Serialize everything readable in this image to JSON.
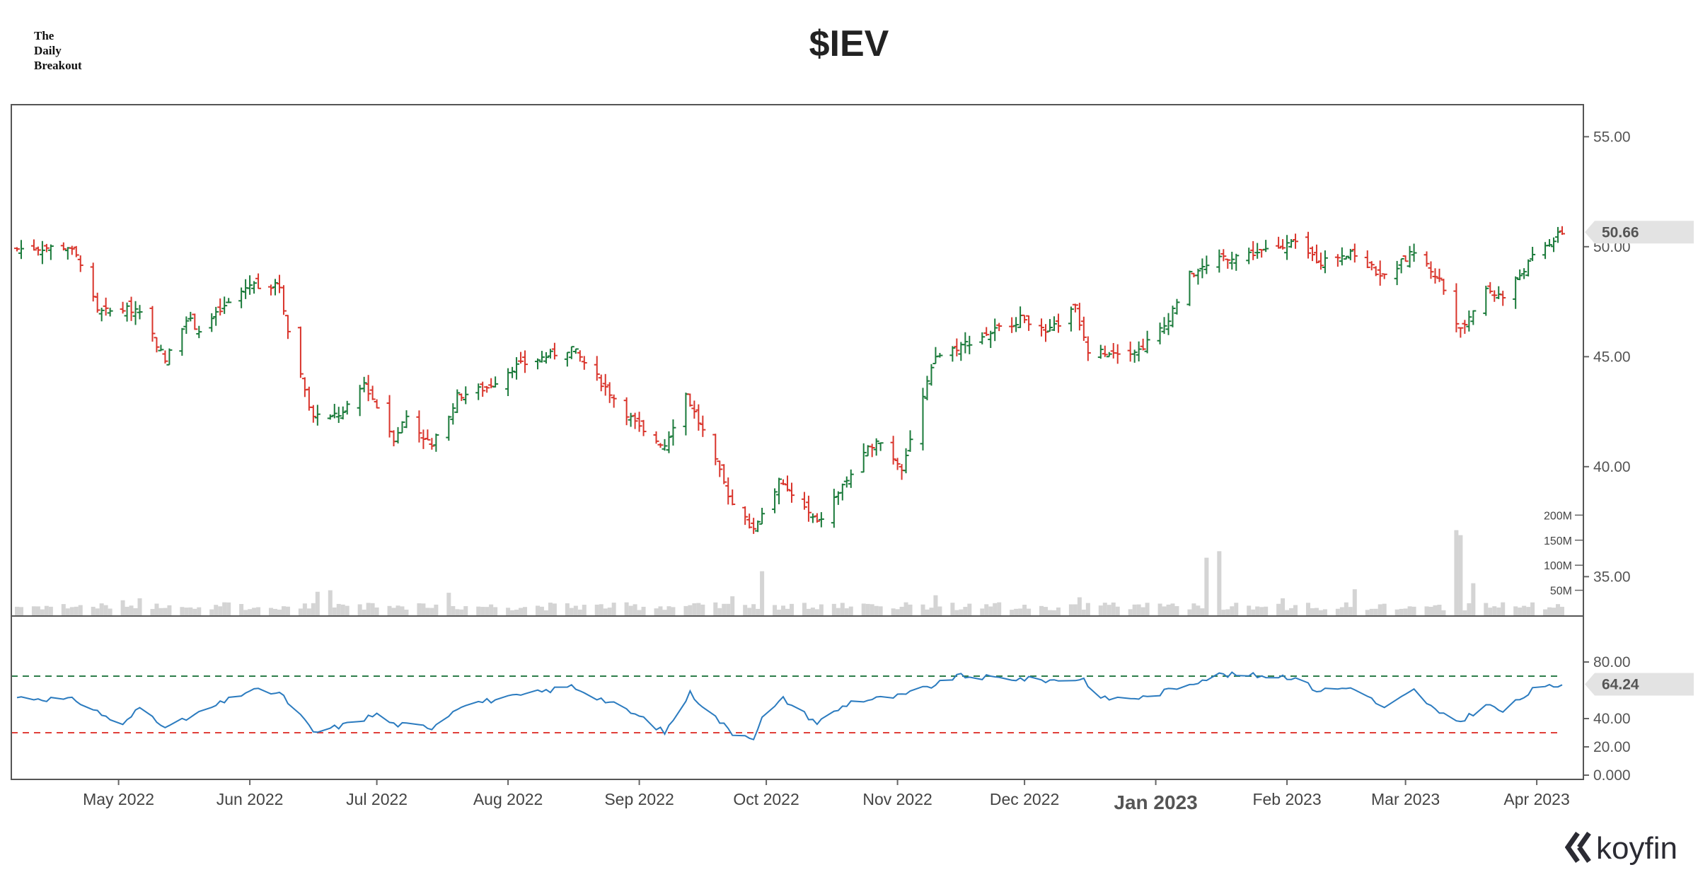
{
  "header": {
    "brand_line1": "The",
    "brand_line2": "Daily",
    "brand_line3": "Breakout",
    "title": "$IEV"
  },
  "logo": {
    "text": "koyfin",
    "icon": "koyfin-logo-icon"
  },
  "colors": {
    "up": "#1a7a3a",
    "down": "#d9342b",
    "rsi_line": "#2b7bbf",
    "overbought": "#2e7d4a",
    "oversold": "#e0403a",
    "volume": "#d4d4d4"
  },
  "chart_data": [
    {
      "type": "ohlc",
      "title": "$IEV",
      "ylim": [
        33.5,
        56.2
      ],
      "y_ticks": [
        "55.00",
        "50.00",
        "45.00",
        "40.00",
        "35.00"
      ],
      "last_value": "50.66",
      "x_tick_labels": [
        "May 2022",
        "Jun 2022",
        "Jul 2022",
        "Aug 2022",
        "Sep 2022",
        "Oct 2022",
        "Nov 2022",
        "Dec 2022",
        "Jan 2023",
        "Feb 2023",
        "Mar 2023",
        "Apr 2023"
      ],
      "x_start": "2022-04-07",
      "x_end": "2023-04-07",
      "anchors": [
        [
          "2022-04-07",
          49.9
        ],
        [
          "2022-04-19",
          50.0
        ],
        [
          "2022-04-22",
          49.3
        ],
        [
          "2022-04-26",
          47.0
        ],
        [
          "2022-05-06",
          47.2
        ],
        [
          "2022-05-12",
          44.8
        ],
        [
          "2022-05-17",
          46.8
        ],
        [
          "2022-05-20",
          46.2
        ],
        [
          "2022-06-01",
          48.3
        ],
        [
          "2022-06-08",
          48.2
        ],
        [
          "2022-06-10",
          46.2
        ],
        [
          "2022-06-16",
          42.2
        ],
        [
          "2022-06-23",
          42.4
        ],
        [
          "2022-06-28",
          43.8
        ],
        [
          "2022-07-05",
          41.3
        ],
        [
          "2022-07-08",
          42.3
        ],
        [
          "2022-07-14",
          40.9
        ],
        [
          "2022-07-20",
          43.2
        ],
        [
          "2022-07-27",
          43.6
        ],
        [
          "2022-08-02",
          44.5
        ],
        [
          "2022-08-16",
          45.4
        ],
        [
          "2022-08-24",
          43.6
        ],
        [
          "2022-09-02",
          41.5
        ],
        [
          "2022-09-07",
          41.0
        ],
        [
          "2022-09-12",
          43.3
        ],
        [
          "2022-09-16",
          41.6
        ],
        [
          "2022-09-23",
          38.3
        ],
        [
          "2022-09-28",
          37.2
        ],
        [
          "2022-10-04",
          39.3
        ],
        [
          "2022-10-10",
          38.1
        ],
        [
          "2022-10-13",
          37.4
        ],
        [
          "2022-10-20",
          39.4
        ],
        [
          "2022-10-27",
          41.3
        ],
        [
          "2022-11-02",
          40.0
        ],
        [
          "2022-11-10",
          45.0
        ],
        [
          "2022-11-17",
          45.6
        ],
        [
          "2022-12-01",
          46.8
        ],
        [
          "2022-12-06",
          46.0
        ],
        [
          "2022-12-13",
          47.2
        ],
        [
          "2022-12-16",
          45.2
        ],
        [
          "2022-12-28",
          45.3
        ],
        [
          "2023-01-03",
          46.4
        ],
        [
          "2023-01-09",
          48.7
        ],
        [
          "2023-01-17",
          49.5
        ],
        [
          "2023-01-30",
          49.9
        ],
        [
          "2023-02-02",
          50.2
        ],
        [
          "2023-02-09",
          49.3
        ],
        [
          "2023-02-16",
          49.8
        ],
        [
          "2023-02-24",
          48.6
        ],
        [
          "2023-03-03",
          49.8
        ],
        [
          "2023-03-09",
          48.5
        ],
        [
          "2023-03-14",
          46.2
        ],
        [
          "2023-03-20",
          48.1
        ],
        [
          "2023-03-24",
          47.7
        ],
        [
          "2023-03-31",
          49.5
        ],
        [
          "2023-04-07",
          50.66
        ]
      ]
    },
    {
      "type": "bar",
      "name": "Volume",
      "y_ticks": [
        "200M",
        "150M",
        "100M",
        "50M"
      ],
      "ylim": [
        0,
        240
      ],
      "unit": "M",
      "typical": 18,
      "spikes": [
        [
          "2022-05-02",
          30
        ],
        [
          "2022-05-06",
          34
        ],
        [
          "2022-06-17",
          47
        ],
        [
          "2022-06-20",
          50
        ],
        [
          "2022-07-18",
          45
        ],
        [
          "2022-09-23",
          38
        ],
        [
          "2022-09-30",
          88
        ],
        [
          "2022-11-10",
          40
        ],
        [
          "2022-12-14",
          36
        ],
        [
          "2023-01-13",
          115
        ],
        [
          "2023-01-16",
          128
        ],
        [
          "2023-01-31",
          34
        ],
        [
          "2023-02-17",
          52
        ],
        [
          "2023-03-13",
          170
        ],
        [
          "2023-03-14",
          160
        ],
        [
          "2023-03-17",
          64
        ]
      ]
    },
    {
      "type": "line",
      "name": "RSI",
      "y_ticks": [
        "80.00",
        "40.00",
        "20.00",
        "0.000"
      ],
      "ylim": [
        0,
        100
      ],
      "overbought": 70,
      "oversold": 30,
      "last_value": "64.24",
      "anchors": [
        [
          "2022-04-07",
          55
        ],
        [
          "2022-04-21",
          53
        ],
        [
          "2022-05-02",
          35
        ],
        [
          "2022-05-06",
          48
        ],
        [
          "2022-05-11",
          37
        ],
        [
          "2022-05-13",
          34
        ],
        [
          "2022-05-18",
          41
        ],
        [
          "2022-06-01",
          60
        ],
        [
          "2022-06-08",
          58
        ],
        [
          "2022-06-13",
          42
        ],
        [
          "2022-06-16",
          30
        ],
        [
          "2022-06-24",
          36
        ],
        [
          "2022-07-01",
          43
        ],
        [
          "2022-07-05",
          36
        ],
        [
          "2022-07-14",
          34
        ],
        [
          "2022-07-21",
          50
        ],
        [
          "2022-08-02",
          55
        ],
        [
          "2022-08-16",
          63
        ],
        [
          "2022-08-26",
          50
        ],
        [
          "2022-09-02",
          40
        ],
        [
          "2022-09-07",
          30
        ],
        [
          "2022-09-13",
          58
        ],
        [
          "2022-09-20",
          38
        ],
        [
          "2022-09-23",
          30
        ],
        [
          "2022-09-28",
          27
        ],
        [
          "2022-09-30",
          40
        ],
        [
          "2022-10-05",
          54
        ],
        [
          "2022-10-13",
          37
        ],
        [
          "2022-10-21",
          52
        ],
        [
          "2022-11-02",
          56
        ],
        [
          "2022-11-11",
          65
        ],
        [
          "2022-11-15",
          70
        ],
        [
          "2022-12-01",
          68
        ],
        [
          "2022-12-07",
          67
        ],
        [
          "2022-12-15",
          68
        ],
        [
          "2022-12-19",
          54
        ],
        [
          "2022-12-30",
          55
        ],
        [
          "2023-01-09",
          65
        ],
        [
          "2023-01-16",
          71
        ],
        [
          "2023-01-31",
          70
        ],
        [
          "2023-02-03",
          69
        ],
        [
          "2023-02-08",
          60
        ],
        [
          "2023-02-17",
          62
        ],
        [
          "2023-02-24",
          47
        ],
        [
          "2023-03-03",
          60
        ],
        [
          "2023-03-09",
          43
        ],
        [
          "2023-03-14",
          38
        ],
        [
          "2023-03-20",
          50
        ],
        [
          "2023-03-24",
          45
        ],
        [
          "2023-03-31",
          60
        ],
        [
          "2023-04-07",
          64.24
        ]
      ]
    }
  ]
}
